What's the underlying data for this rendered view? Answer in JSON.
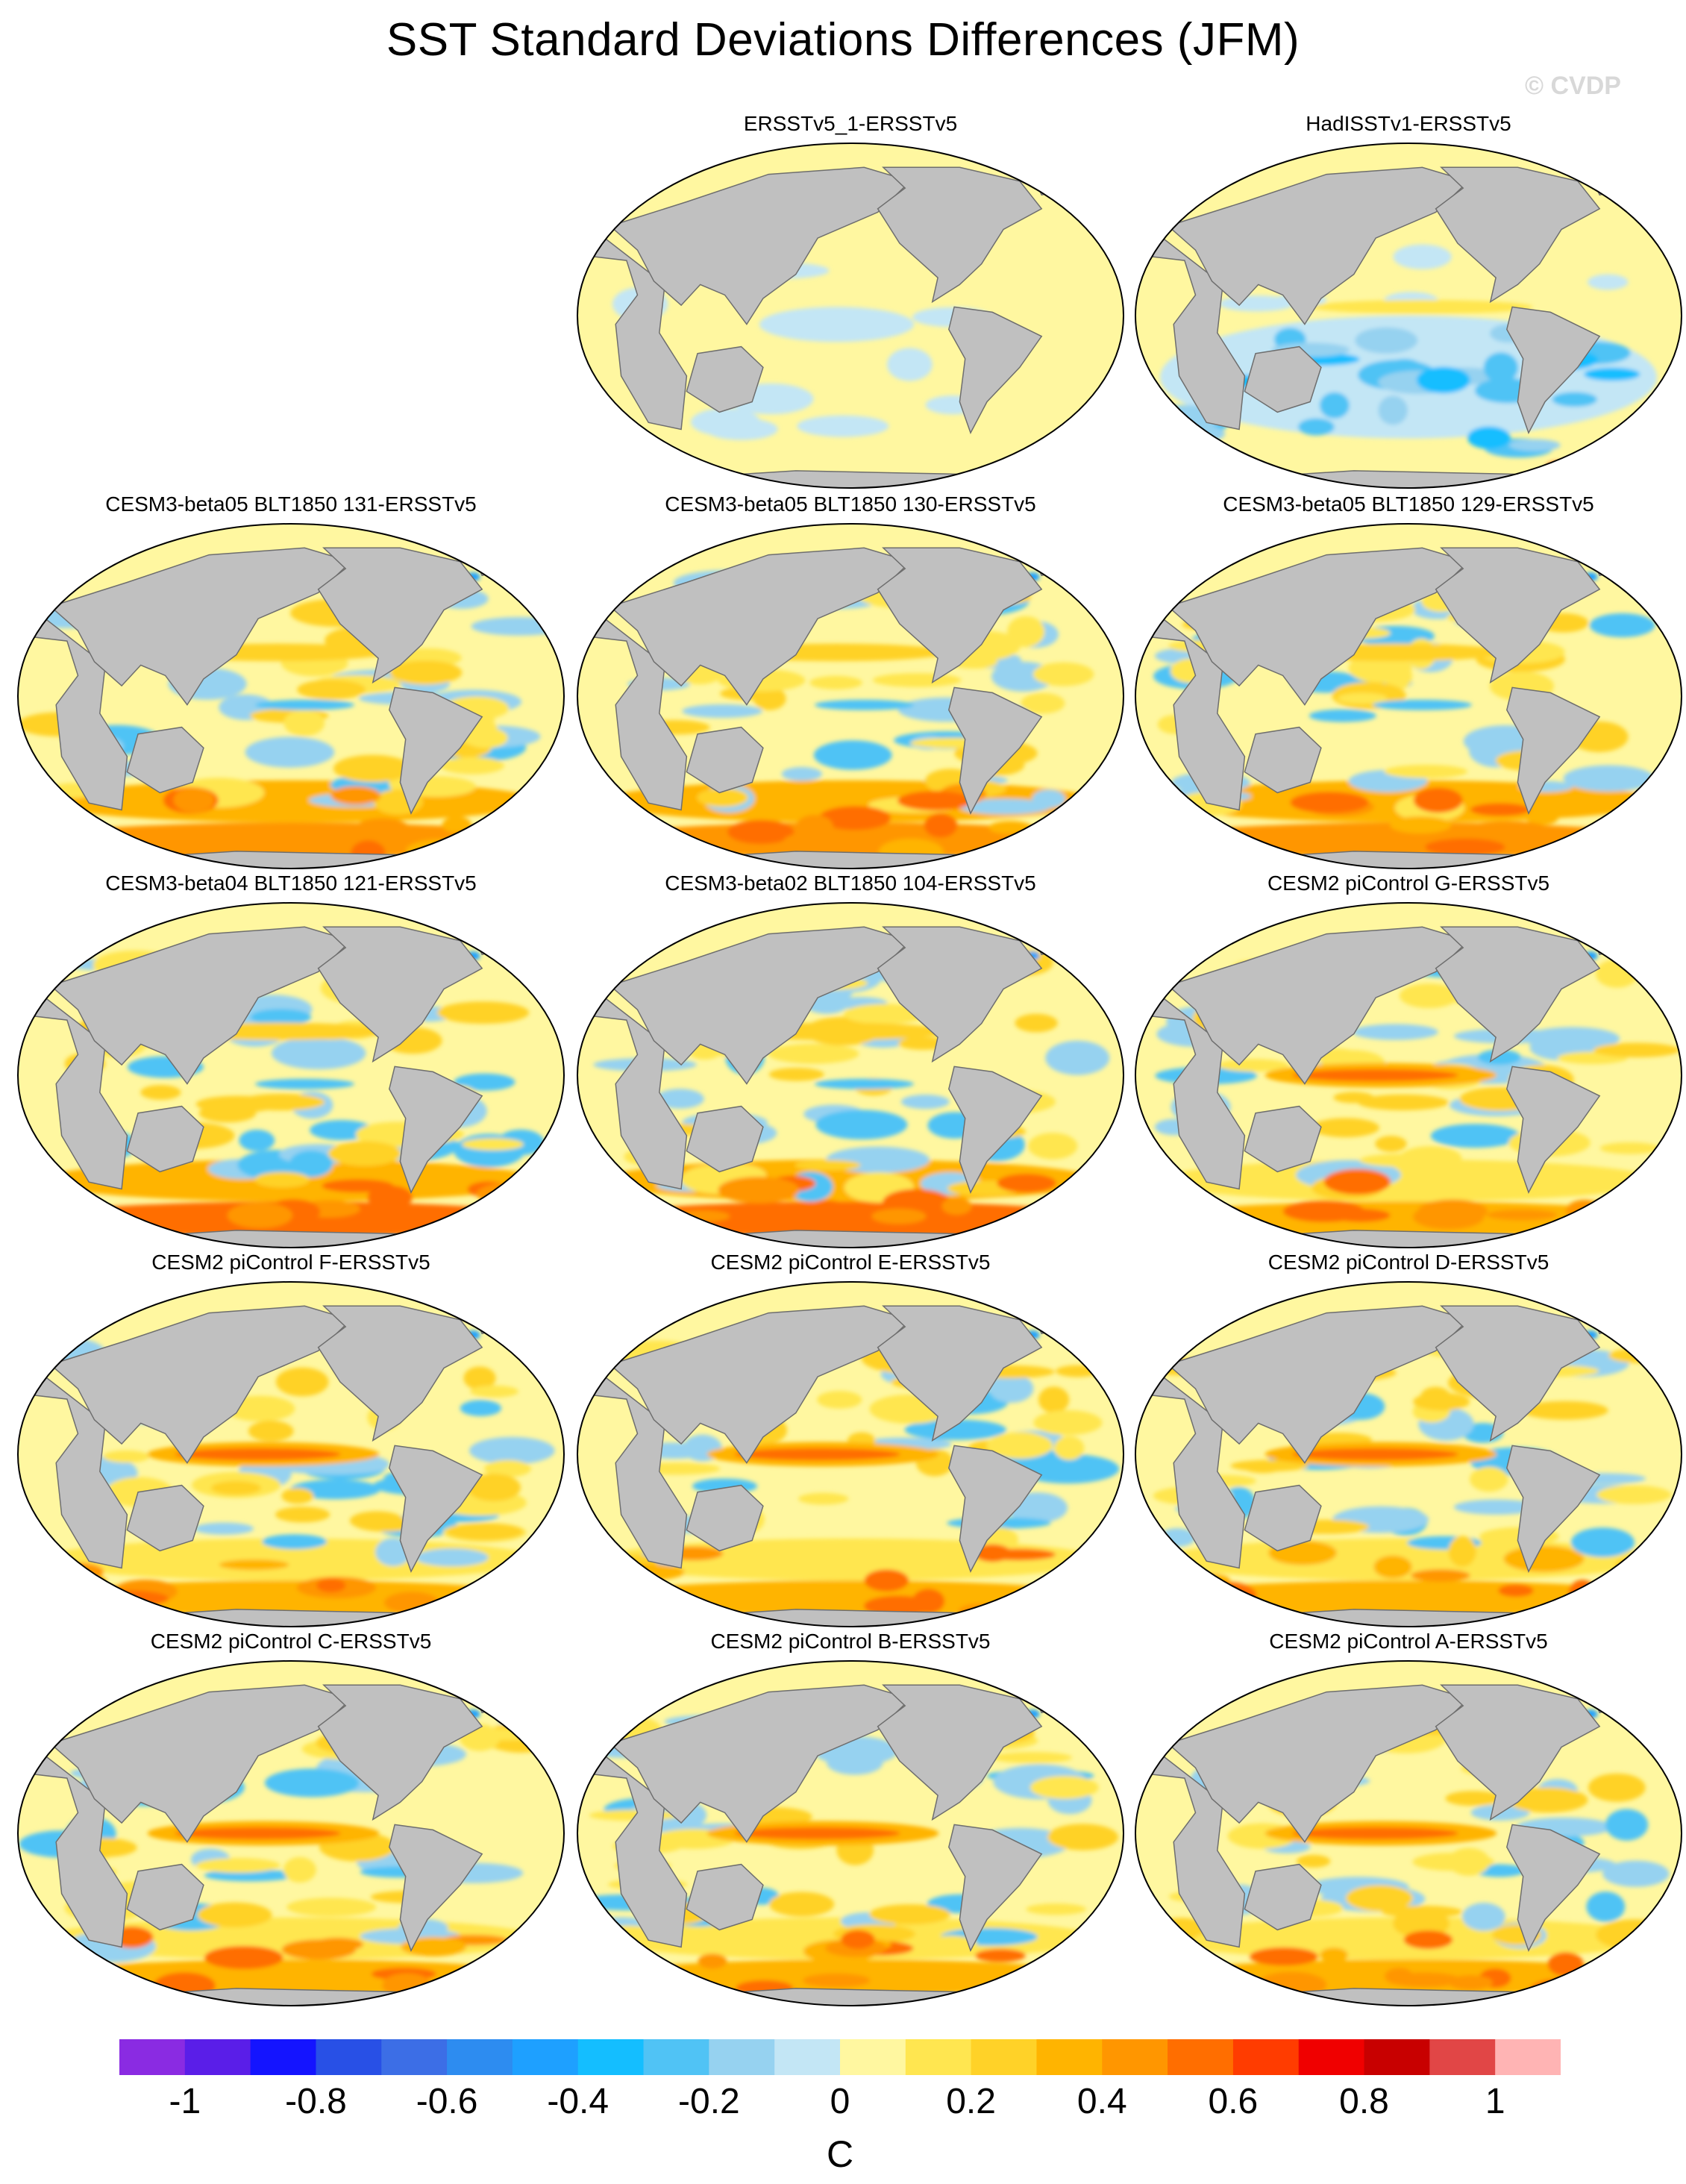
{
  "title": "SST Standard Deviations Differences (JFM)",
  "watermark": "© CVDP",
  "colors": {
    "ocean_background": "#fff7a0",
    "land": "#c0c0c0",
    "coastline": "#6e6e6e"
  },
  "panels": [
    {
      "title": "ERSSTv5_1-ERSSTv5",
      "pattern": "near-zero"
    },
    {
      "title": "HadISSTv1-ERSSTv5",
      "pattern": "negative-south"
    },
    {
      "title": "CESM3-beta05 BLT1850 131-ERSSTv5",
      "pattern": "positive-southern-ocean"
    },
    {
      "title": "CESM3-beta05 BLT1850 130-ERSSTv5",
      "pattern": "positive-southern-ocean"
    },
    {
      "title": "CESM3-beta05 BLT1850 129-ERSSTv5",
      "pattern": "positive-southern-ocean"
    },
    {
      "title": "CESM3-beta04 BLT1850 121-ERSSTv5",
      "pattern": "strong-southern-ocean"
    },
    {
      "title": "CESM3-beta02 BLT1850 104-ERSSTv5",
      "pattern": "strong-southern-ocean"
    },
    {
      "title": "CESM2 piControl G-ERSSTv5",
      "pattern": "enso-tongue"
    },
    {
      "title": "CESM2 piControl F-ERSSTv5",
      "pattern": "enso-tongue"
    },
    {
      "title": "CESM2 piControl E-ERSSTv5",
      "pattern": "enso-tongue"
    },
    {
      "title": "CESM2 piControl D-ERSSTv5",
      "pattern": "enso-tongue"
    },
    {
      "title": "CESM2 piControl C-ERSSTv5",
      "pattern": "enso-tongue"
    },
    {
      "title": "CESM2 piControl B-ERSSTv5",
      "pattern": "enso-tongue"
    },
    {
      "title": "CESM2 piControl A-ERSSTv5",
      "pattern": "enso-tongue"
    }
  ],
  "colorbar": {
    "unit": "C",
    "min": -1.1,
    "max": 1.1,
    "step": 0.1,
    "colors": [
      "#8a2be2",
      "#5a1ee8",
      "#1414ff",
      "#2850e6",
      "#3c6ee6",
      "#2d8cf0",
      "#1ea0ff",
      "#14beff",
      "#50c3f5",
      "#96d2f0",
      "#c3e6f5",
      "#fff7a0",
      "#ffe650",
      "#ffd228",
      "#ffb400",
      "#ff9600",
      "#ff6e00",
      "#ff3c00",
      "#f00000",
      "#c80000",
      "#e14646",
      "#ffb4b4"
    ],
    "tick_labels": [
      "-1",
      "-0.8",
      "-0.6",
      "-0.4",
      "-0.2",
      "0",
      "0.2",
      "0.4",
      "0.6",
      "0.8",
      "1"
    ],
    "tick_values": [
      -1,
      -0.8,
      -0.6,
      -0.4,
      -0.2,
      0,
      0.2,
      0.4,
      0.6,
      0.8,
      1
    ]
  }
}
